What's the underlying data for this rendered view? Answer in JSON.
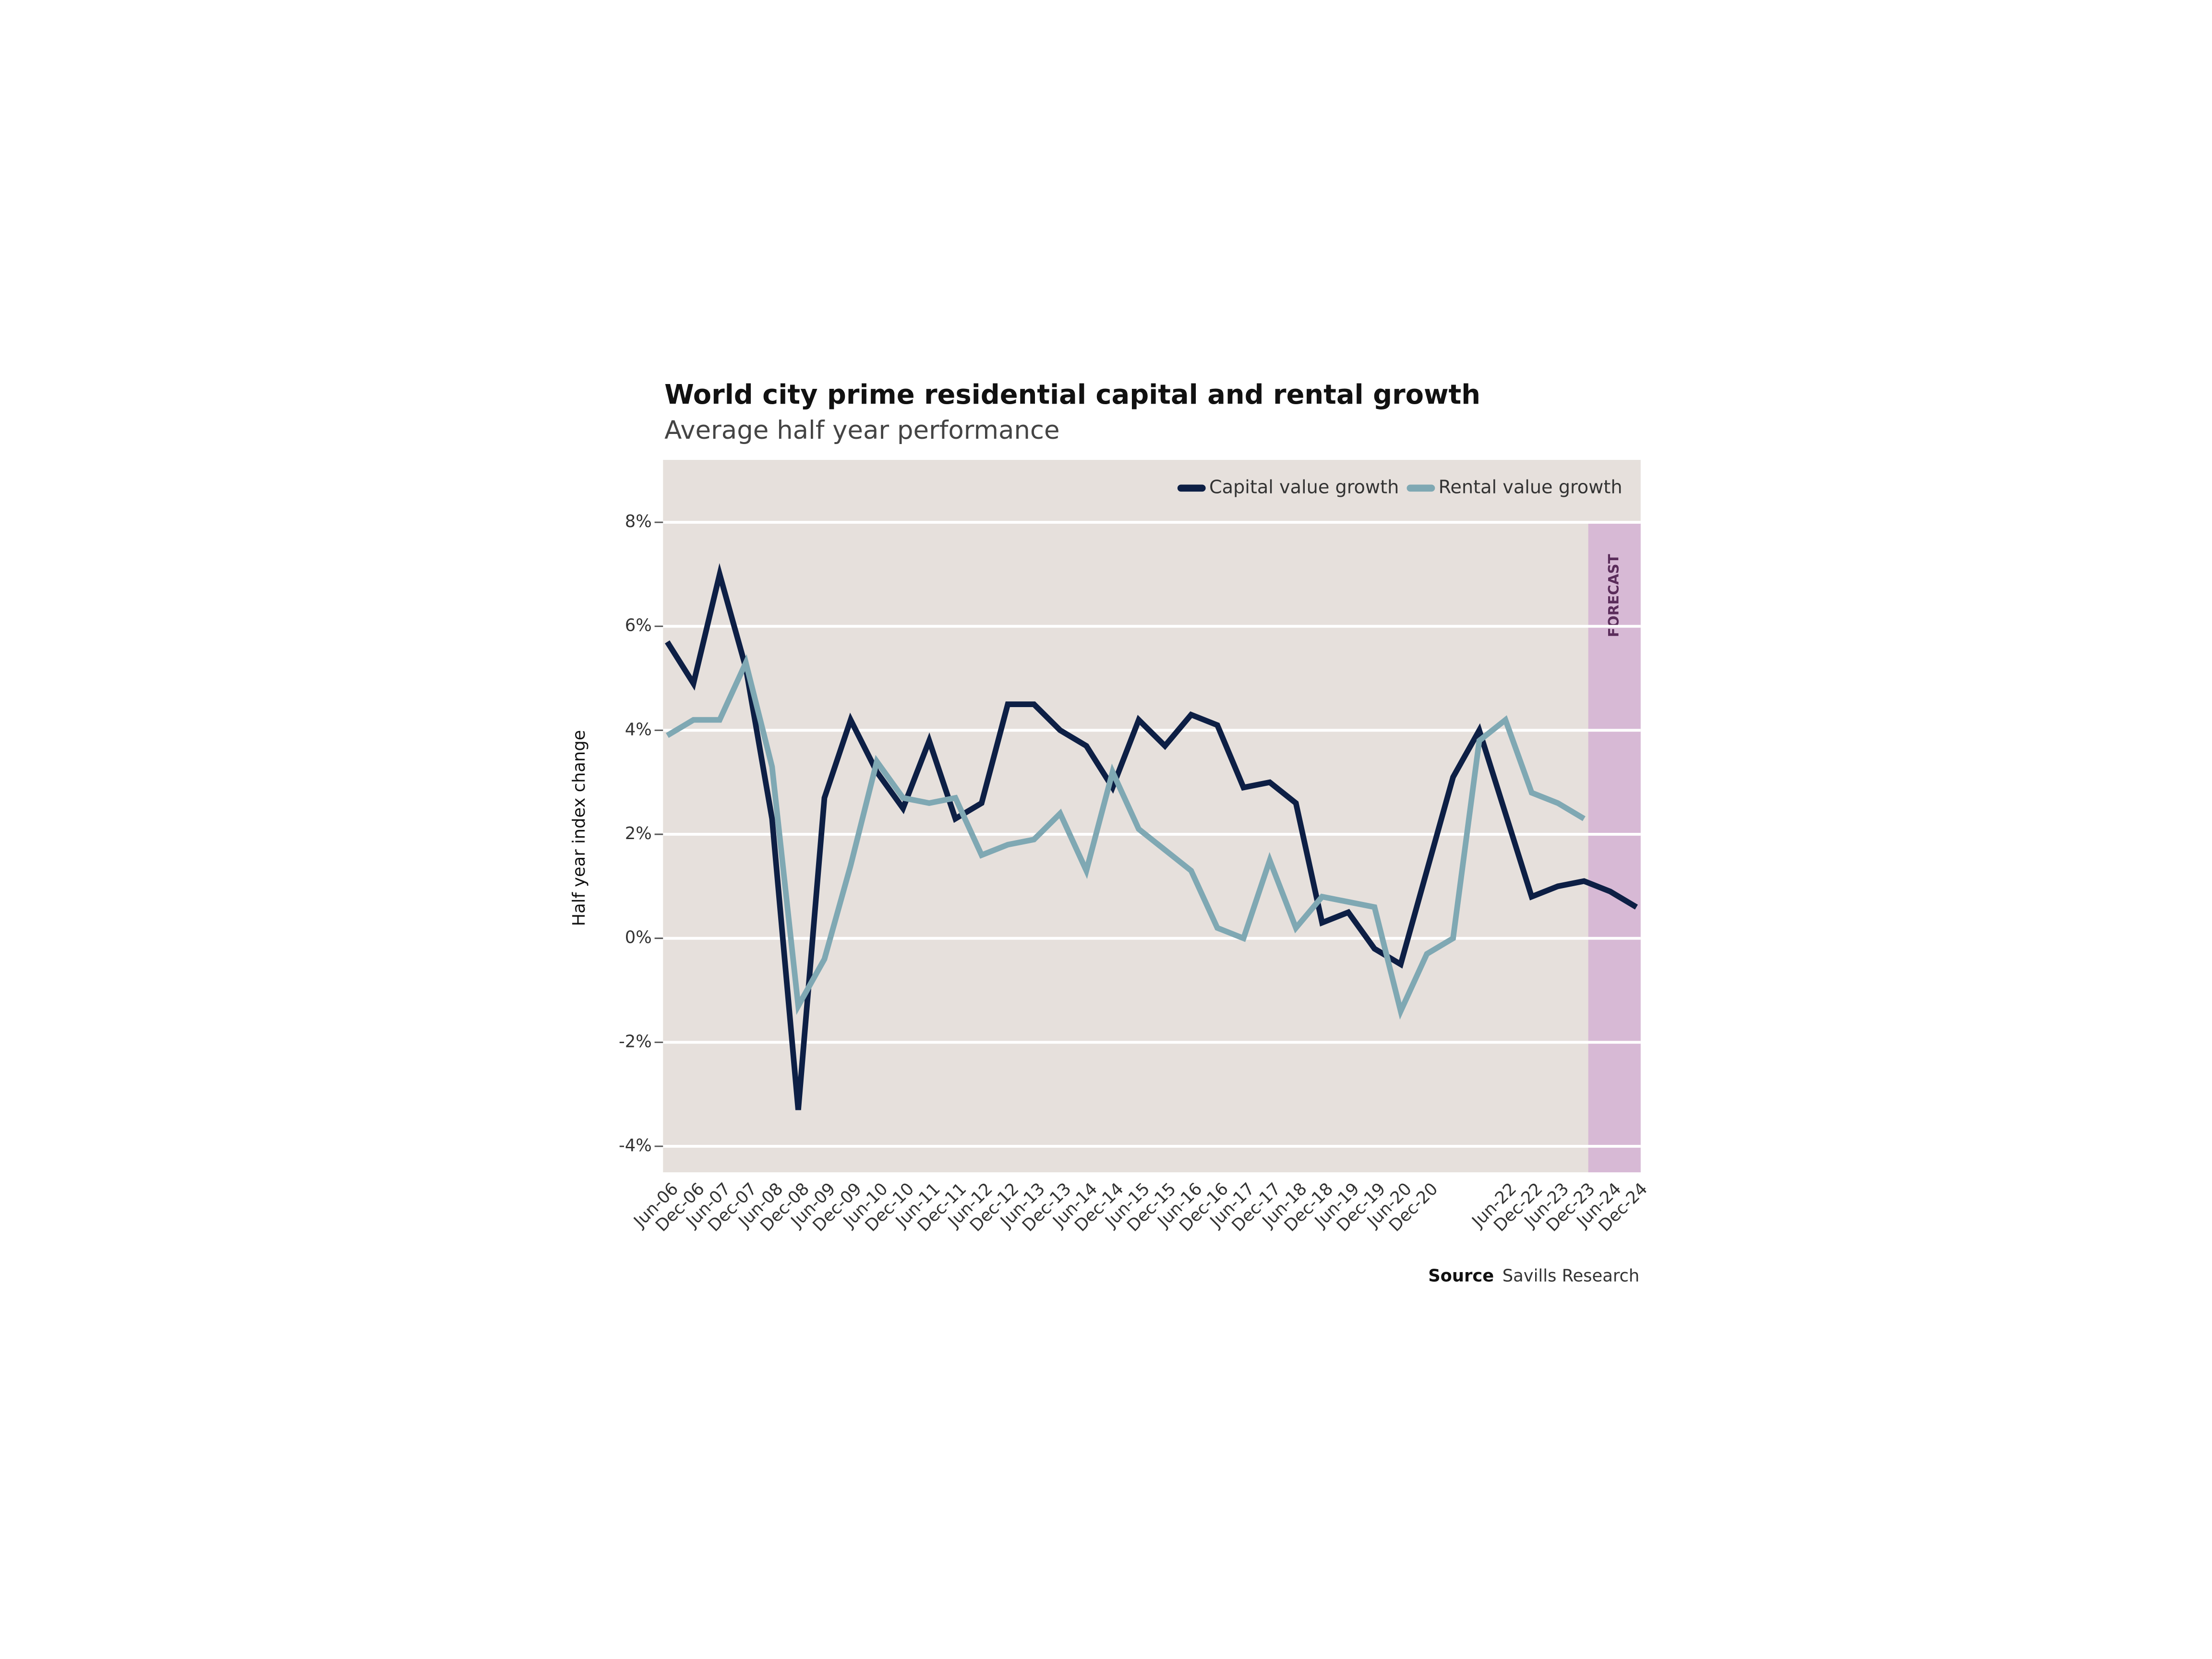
{
  "chart_data": {
    "type": "line",
    "title": "World city prime residential capital and rental growth",
    "subtitle": "Average half year performance",
    "y_label": "Half year index change",
    "forecast_label": "FORECAST",
    "source_label": "Source",
    "source": "Savills Research",
    "categories": [
      "Jun-06",
      "Dec-06",
      "Jun-07",
      "Dec-07",
      "Jun-08",
      "Dec-08",
      "Jun-09",
      "Dec-09",
      "Jun-10",
      "Dec-10",
      "Jun-11",
      "Dec-11",
      "Jun-12",
      "Dec-12",
      "Jun-13",
      "Dec-13",
      "Jun-14",
      "Dec-14",
      "Jun-15",
      "Dec-15",
      "Jun-16",
      "Dec-16",
      "Jun-17",
      "Dec-17",
      "Jun-18",
      "Dec-18",
      "Jun-19",
      "Dec-19",
      "Jun-20",
      "Dec-20",
      null,
      null,
      "Jun-22",
      "Dec-22",
      "Jun-23",
      "Dec-23",
      "Jun-24",
      "Dec-24"
    ],
    "series": [
      {
        "name": "Capital value growth",
        "color": "#0d1f45",
        "values": [
          5.7,
          4.9,
          7.0,
          5.2,
          2.3,
          -3.3,
          2.7,
          4.2,
          3.2,
          2.5,
          3.8,
          2.3,
          2.6,
          4.5,
          4.5,
          4.0,
          3.7,
          2.9,
          4.2,
          3.7,
          4.3,
          4.1,
          2.9,
          3.0,
          2.6,
          0.3,
          0.5,
          -0.2,
          -0.5,
          1.3,
          3.1,
          4.0,
          2.4,
          0.8,
          1.0,
          1.1,
          0.9,
          0.6
        ]
      },
      {
        "name": "Rental value growth",
        "color": "#7fa8b3",
        "values": [
          3.9,
          4.2,
          4.2,
          5.3,
          3.3,
          -1.3,
          -0.4,
          1.4,
          3.4,
          2.7,
          2.6,
          2.7,
          1.6,
          1.8,
          1.9,
          2.4,
          1.3,
          3.2,
          2.1,
          1.7,
          1.3,
          0.2,
          0.0,
          1.5,
          0.2,
          0.8,
          0.7,
          0.6,
          -1.4,
          -0.3,
          0.0,
          3.8,
          4.2,
          2.8,
          2.6,
          2.3,
          null,
          null
        ]
      }
    ],
    "ylim": [
      -4.5,
      9.2
    ],
    "yticks": [
      {
        "value": -4,
        "label": "-4%"
      },
      {
        "value": -2,
        "label": "-2%"
      },
      {
        "value": 0,
        "label": "0%"
      },
      {
        "value": 2,
        "label": "2%"
      },
      {
        "value": 4,
        "label": "4%"
      },
      {
        "value": 6,
        "label": "6%"
      },
      {
        "value": 8,
        "label": "8%"
      }
    ],
    "grid": true,
    "background": "#e6e0dc",
    "forecast_color": "#d7b9d5",
    "legend": "top-right"
  }
}
